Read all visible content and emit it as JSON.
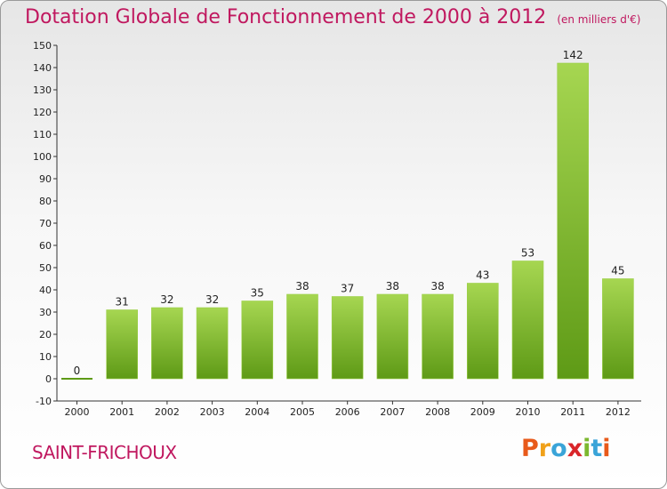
{
  "title": "Dotation Globale de Fonctionnement de 2000 à 2012",
  "subtitle": "(en milliers d'€)",
  "town": "SAINT-FRICHOUX",
  "brand": "Proxiti",
  "brand_colors": [
    "#e85a1b",
    "#f0a11a",
    "#3aa4d8",
    "#d9252a",
    "#7cb82f",
    "#3aa4d8",
    "#e85a1b"
  ],
  "colors": {
    "bar_light": "#a6d651",
    "bar_dark": "#5e9a16",
    "title": "#c0185f"
  },
  "chart_data": {
    "type": "bar",
    "categories": [
      "2000",
      "2001",
      "2002",
      "2003",
      "2004",
      "2005",
      "2006",
      "2007",
      "2008",
      "2009",
      "2010",
      "2011",
      "2012"
    ],
    "values": [
      0,
      31,
      32,
      32,
      35,
      38,
      37,
      38,
      38,
      43,
      53,
      142,
      45
    ],
    "title": "Dotation Globale de Fonctionnement de 2000 à 2012",
    "subtitle": "(en milliers d'€)",
    "xlabel": "",
    "ylabel": "",
    "ylim": [
      -10,
      150
    ],
    "yticks": [
      -10,
      0,
      10,
      20,
      30,
      40,
      50,
      60,
      70,
      80,
      90,
      100,
      110,
      120,
      130,
      140,
      150
    ],
    "grid": false,
    "data_labels": true
  }
}
